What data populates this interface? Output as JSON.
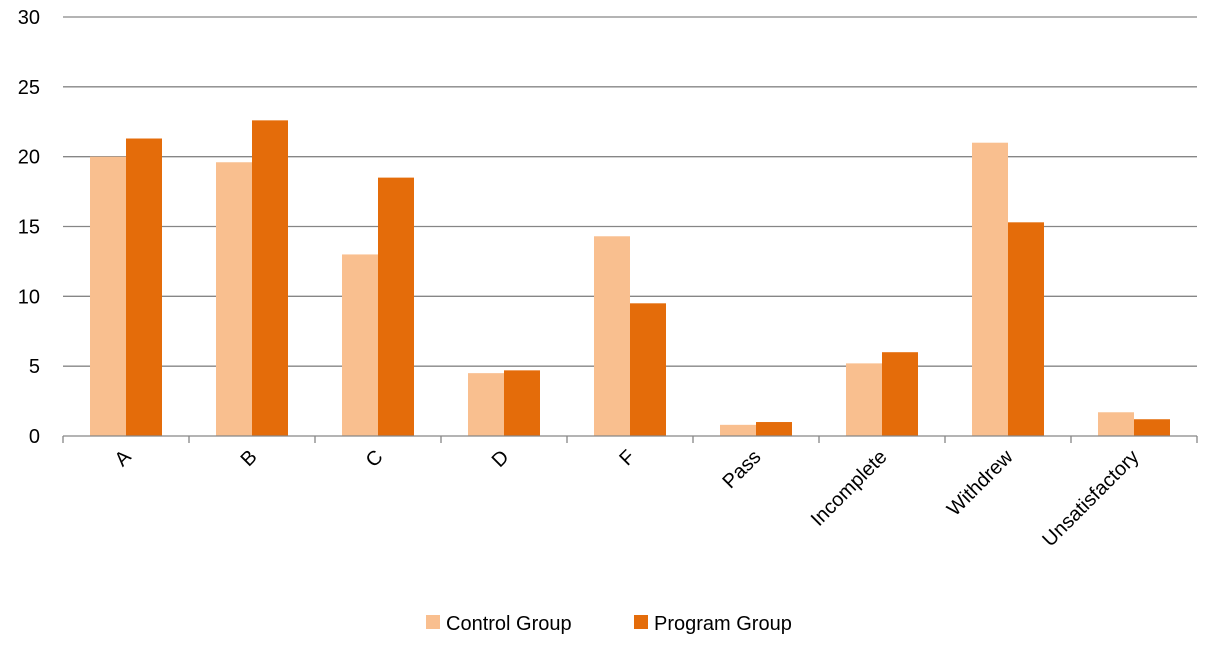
{
  "chart_data": {
    "type": "bar",
    "title": "",
    "xlabel": "",
    "ylabel": "",
    "categories": [
      "A",
      "B",
      "C",
      "D",
      "F",
      "Pass",
      "Incomplete",
      "Withdrew",
      "Unsatisfactory"
    ],
    "series": [
      {
        "name": "Control Group",
        "color": "#F9BF8F",
        "values": [
          20.0,
          19.6,
          13.0,
          4.5,
          14.3,
          0.8,
          5.2,
          21.0,
          1.7
        ]
      },
      {
        "name": "Program Group",
        "color": "#E46C0A",
        "values": [
          21.3,
          22.6,
          18.5,
          4.7,
          9.5,
          1.0,
          6.0,
          15.3,
          1.2
        ]
      }
    ],
    "ylim": [
      0,
      30
    ],
    "yticks": [
      0,
      5,
      10,
      15,
      20,
      25,
      30
    ],
    "grid": true,
    "legend": "bottom-center"
  }
}
